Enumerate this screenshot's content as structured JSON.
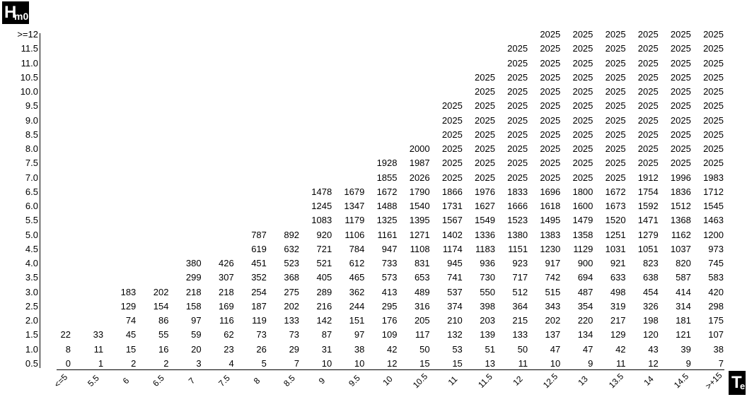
{
  "chart_data": {
    "type": "table",
    "y_axis_title": "H",
    "y_axis_title_sub": "m0",
    "x_axis_title": "T",
    "x_axis_title_sub": "e",
    "columns": [
      "<=5",
      "5.5",
      "6",
      "6.5",
      "7",
      "7.5",
      "8",
      "8.5",
      "9",
      "9.5",
      "10",
      "10.5",
      "11",
      "11.5",
      "12",
      "12.5",
      "13",
      "13.5",
      "14",
      "14.5",
      ">+15"
    ],
    "rows": [
      ">=12",
      "11.5",
      "11.0",
      "10.5",
      "10.0",
      "9.5",
      "9.0",
      "8.5",
      "8.0",
      "7.5",
      "7.0",
      "6.5",
      "6.0",
      "5.5",
      "5.0",
      "4.5",
      "4.0",
      "3.5",
      "3.0",
      "2.5",
      "2.0",
      "1.5",
      "1.0",
      "0.5"
    ],
    "cells": [
      [
        null,
        null,
        null,
        null,
        null,
        null,
        null,
        null,
        null,
        null,
        null,
        null,
        null,
        null,
        null,
        2025,
        2025,
        2025,
        2025,
        2025,
        2025
      ],
      [
        null,
        null,
        null,
        null,
        null,
        null,
        null,
        null,
        null,
        null,
        null,
        null,
        null,
        null,
        2025,
        2025,
        2025,
        2025,
        2025,
        2025,
        2025
      ],
      [
        null,
        null,
        null,
        null,
        null,
        null,
        null,
        null,
        null,
        null,
        null,
        null,
        null,
        null,
        2025,
        2025,
        2025,
        2025,
        2025,
        2025,
        2025
      ],
      [
        null,
        null,
        null,
        null,
        null,
        null,
        null,
        null,
        null,
        null,
        null,
        null,
        null,
        2025,
        2025,
        2025,
        2025,
        2025,
        2025,
        2025,
        2025
      ],
      [
        null,
        null,
        null,
        null,
        null,
        null,
        null,
        null,
        null,
        null,
        null,
        null,
        null,
        2025,
        2025,
        2025,
        2025,
        2025,
        2025,
        2025,
        2025
      ],
      [
        null,
        null,
        null,
        null,
        null,
        null,
        null,
        null,
        null,
        null,
        null,
        null,
        2025,
        2025,
        2025,
        2025,
        2025,
        2025,
        2025,
        2025,
        2025
      ],
      [
        null,
        null,
        null,
        null,
        null,
        null,
        null,
        null,
        null,
        null,
        null,
        null,
        2025,
        2025,
        2025,
        2025,
        2025,
        2025,
        2025,
        2025,
        2025
      ],
      [
        null,
        null,
        null,
        null,
        null,
        null,
        null,
        null,
        null,
        null,
        null,
        null,
        2025,
        2025,
        2025,
        2025,
        2025,
        2025,
        2025,
        2025,
        2025
      ],
      [
        null,
        null,
        null,
        null,
        null,
        null,
        null,
        null,
        null,
        null,
        null,
        2000,
        2025,
        2025,
        2025,
        2025,
        2025,
        2025,
        2025,
        2025,
        2025
      ],
      [
        null,
        null,
        null,
        null,
        null,
        null,
        null,
        null,
        null,
        null,
        1928,
        1987,
        2025,
        2025,
        2025,
        2025,
        2025,
        2025,
        2025,
        2025,
        2025
      ],
      [
        null,
        null,
        null,
        null,
        null,
        null,
        null,
        null,
        null,
        null,
        1855,
        2026,
        2025,
        2025,
        2025,
        2025,
        2025,
        2025,
        1912,
        1996,
        1983
      ],
      [
        null,
        null,
        null,
        null,
        null,
        null,
        null,
        null,
        1478,
        1679,
        1672,
        1790,
        1866,
        1976,
        1833,
        1696,
        1800,
        1672,
        1754,
        1836,
        1712
      ],
      [
        null,
        null,
        null,
        null,
        null,
        null,
        null,
        null,
        1245,
        1347,
        1488,
        1540,
        1731,
        1627,
        1666,
        1618,
        1600,
        1673,
        1592,
        1512,
        1545
      ],
      [
        null,
        null,
        null,
        null,
        null,
        null,
        null,
        null,
        1083,
        1179,
        1325,
        1395,
        1567,
        1549,
        1523,
        1495,
        1479,
        1520,
        1471,
        1368,
        1463
      ],
      [
        null,
        null,
        null,
        null,
        null,
        null,
        787,
        892,
        920,
        1106,
        1161,
        1271,
        1402,
        1336,
        1380,
        1383,
        1358,
        1251,
        1279,
        1162,
        1200
      ],
      [
        null,
        null,
        null,
        null,
        null,
        null,
        619,
        632,
        721,
        784,
        947,
        1108,
        1174,
        1183,
        1151,
        1230,
        1129,
        1031,
        1051,
        1037,
        973
      ],
      [
        null,
        null,
        null,
        null,
        380,
        426,
        451,
        523,
        521,
        612,
        733,
        831,
        945,
        936,
        923,
        917,
        900,
        921,
        823,
        820,
        745
      ],
      [
        null,
        null,
        null,
        null,
        299,
        307,
        352,
        368,
        405,
        465,
        573,
        653,
        741,
        730,
        717,
        742,
        694,
        633,
        638,
        587,
        583
      ],
      [
        null,
        null,
        183,
        202,
        218,
        218,
        254,
        275,
        289,
        362,
        413,
        489,
        537,
        550,
        512,
        515,
        487,
        498,
        454,
        414,
        420
      ],
      [
        null,
        null,
        129,
        154,
        158,
        169,
        187,
        202,
        216,
        244,
        295,
        316,
        374,
        398,
        364,
        343,
        354,
        319,
        326,
        314,
        298
      ],
      [
        null,
        null,
        74,
        86,
        97,
        116,
        119,
        133,
        142,
        151,
        176,
        205,
        210,
        203,
        215,
        202,
        220,
        217,
        198,
        181,
        175
      ],
      [
        22,
        33,
        45,
        55,
        59,
        62,
        73,
        73,
        87,
        97,
        109,
        117,
        132,
        139,
        133,
        137,
        134,
        129,
        120,
        121,
        107
      ],
      [
        8,
        11,
        15,
        16,
        20,
        23,
        26,
        29,
        31,
        38,
        42,
        50,
        53,
        51,
        50,
        47,
        47,
        42,
        43,
        39,
        38
      ],
      [
        0,
        1,
        2,
        2,
        3,
        4,
        5,
        7,
        10,
        10,
        12,
        15,
        15,
        13,
        11,
        10,
        9,
        11,
        12,
        9,
        7
      ]
    ]
  }
}
